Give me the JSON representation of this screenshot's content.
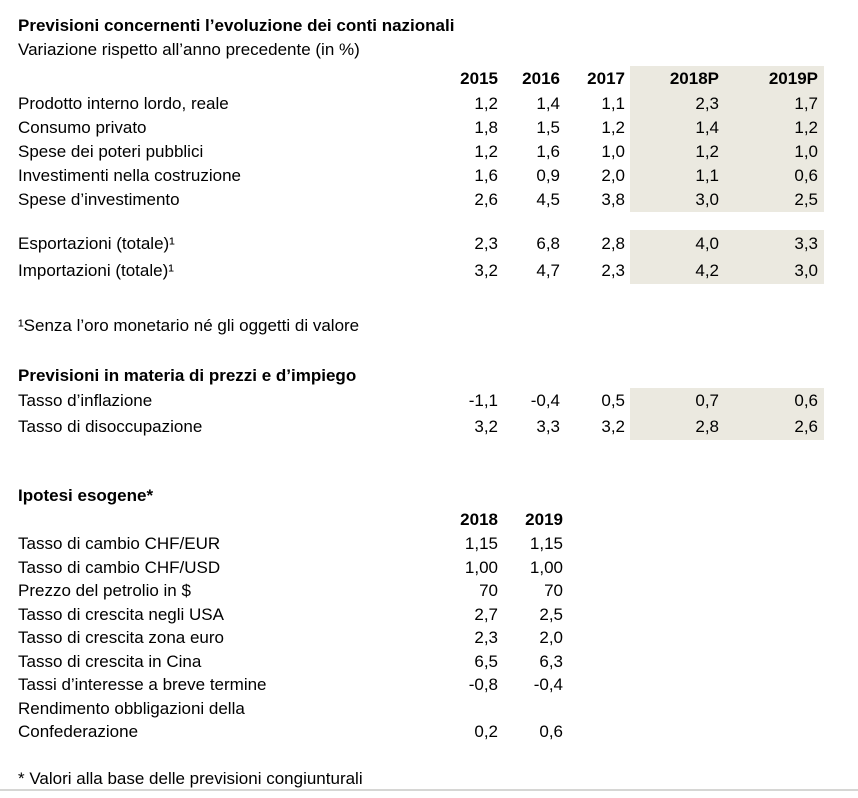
{
  "theme": {
    "highlight_bg": "#ebe9e0",
    "divider_color": "#d6d6d4"
  },
  "page": {
    "title": "Previsioni concernenti l’evoluzione dei conti nazionali",
    "subtitle": "Variazione rispetto all’anno precedente (in %)"
  },
  "national_accounts": {
    "columns": [
      "2015",
      "2016",
      "2017",
      "2018P",
      "2019P"
    ],
    "groups": [
      {
        "rows": [
          {
            "label": "Prodotto interno lordo, reale",
            "values": [
              "1,2",
              "1,4",
              "1,1",
              "2,3",
              "1,7"
            ]
          },
          {
            "label": "Consumo privato",
            "values": [
              "1,8",
              "1,5",
              "1,2",
              "1,4",
              "1,2"
            ]
          },
          {
            "label": "Spese dei poteri pubblici",
            "values": [
              "1,2",
              "1,6",
              "1,0",
              "1,2",
              "1,0"
            ]
          },
          {
            "label": "Investimenti nella costruzione",
            "values": [
              "1,6",
              "0,9",
              "2,0",
              "1,1",
              "0,6"
            ]
          },
          {
            "label": "Spese d’investimento",
            "values": [
              "2,6",
              "4,5",
              "3,8",
              "3,0",
              "2,5"
            ]
          }
        ]
      },
      {
        "rows": [
          {
            "label": "Esportazioni (totale)¹",
            "values": [
              "2,3",
              "6,8",
              "2,8",
              "4,0",
              "3,3"
            ]
          },
          {
            "label": "Importazioni (totale)¹",
            "values": [
              "3,2",
              "4,7",
              "2,3",
              "4,2",
              "3,0"
            ]
          }
        ]
      }
    ],
    "footnote": "¹Senza l’oro monetario né gli oggetti di valore"
  },
  "prices_employment": {
    "title": "Previsioni in materia di prezzi e d’impiego",
    "rows": [
      {
        "label": "Tasso d’inflazione",
        "values": [
          "-1,1",
          "-0,4",
          "0,5",
          "0,7",
          "0,6"
        ]
      },
      {
        "label": "Tasso di disoccupazione",
        "values": [
          "3,2",
          "3,3",
          "3,2",
          "2,8",
          "2,6"
        ]
      }
    ]
  },
  "exogenous": {
    "title": "Ipotesi esogene*",
    "columns": [
      "2018",
      "2019"
    ],
    "rows": [
      {
        "label": "Tasso di cambio CHF/EUR",
        "values": [
          "1,15",
          "1,15"
        ]
      },
      {
        "label": "Tasso di cambio CHF/USD",
        "values": [
          "1,00",
          "1,00"
        ]
      },
      {
        "label": "Prezzo del petrolio in $",
        "values": [
          "70",
          "70"
        ]
      },
      {
        "label": "Tasso di crescita negli USA",
        "values": [
          "2,7",
          "2,5"
        ]
      },
      {
        "label": "Tasso di crescita zona euro",
        "values": [
          "2,3",
          "2,0"
        ]
      },
      {
        "label": "Tasso di crescita in Cina",
        "values": [
          "6,5",
          "6,3"
        ]
      },
      {
        "label": "Tassi d’interesse a breve termine",
        "values": [
          "-0,8",
          "-0,4"
        ]
      },
      {
        "label": "Rendimento obbligazioni della\nConfederazione",
        "values": [
          "0,2",
          "0,6"
        ]
      }
    ]
  },
  "footer": "* Valori alla base delle previsioni congiunturali"
}
